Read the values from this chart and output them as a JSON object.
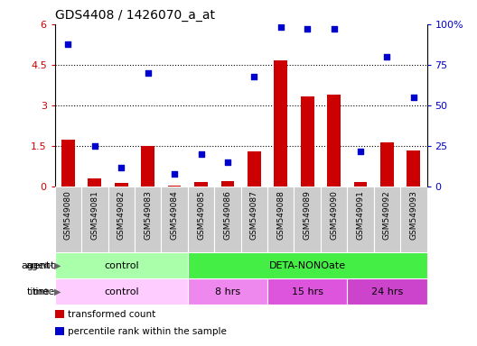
{
  "title": "GDS4408 / 1426070_a_at",
  "samples": [
    "GSM549080",
    "GSM549081",
    "GSM549082",
    "GSM549083",
    "GSM549084",
    "GSM549085",
    "GSM549086",
    "GSM549087",
    "GSM549088",
    "GSM549089",
    "GSM549090",
    "GSM549091",
    "GSM549092",
    "GSM549093"
  ],
  "transformed_count": [
    1.75,
    0.3,
    0.15,
    1.5,
    0.05,
    0.18,
    0.22,
    1.3,
    4.65,
    3.35,
    3.4,
    0.18,
    1.65,
    1.35
  ],
  "percentile_rank": [
    88,
    25,
    12,
    70,
    8,
    20,
    15,
    68,
    98,
    97,
    97,
    22,
    80,
    55
  ],
  "bar_color": "#cc0000",
  "dot_color": "#0000cc",
  "ylim_left": [
    0,
    6
  ],
  "ylim_right": [
    0,
    100
  ],
  "yticks_left": [
    0,
    1.5,
    3,
    4.5,
    6
  ],
  "ytick_labels_left": [
    "0",
    "1.5",
    "3",
    "4.5",
    "6"
  ],
  "yticks_right": [
    0,
    25,
    50,
    75,
    100
  ],
  "ytick_labels_right": [
    "0",
    "25",
    "50",
    "75",
    "100%"
  ],
  "hlines": [
    1.5,
    3.0,
    4.5
  ],
  "agent_groups": [
    {
      "label": "control",
      "start": 0,
      "end": 5,
      "color": "#aaffaa"
    },
    {
      "label": "DETA-NONOate",
      "start": 5,
      "end": 14,
      "color": "#44ee44"
    }
  ],
  "time_groups": [
    {
      "label": "control",
      "start": 0,
      "end": 5,
      "color": "#ffccff"
    },
    {
      "label": "8 hrs",
      "start": 5,
      "end": 8,
      "color": "#ee88ee"
    },
    {
      "label": "15 hrs",
      "start": 8,
      "end": 11,
      "color": "#dd55dd"
    },
    {
      "label": "24 hrs",
      "start": 11,
      "end": 14,
      "color": "#cc44cc"
    }
  ],
  "legend_items": [
    {
      "label": "transformed count",
      "color": "#cc0000"
    },
    {
      "label": "percentile rank within the sample",
      "color": "#0000cc"
    }
  ],
  "bar_width": 0.5,
  "xlabel_color": "#cc0000",
  "right_axis_color": "#0000cc",
  "tick_label_bg": "#cccccc",
  "tick_label_fontsize": 6.5,
  "axis_fontsize": 8,
  "title_fontsize": 10
}
